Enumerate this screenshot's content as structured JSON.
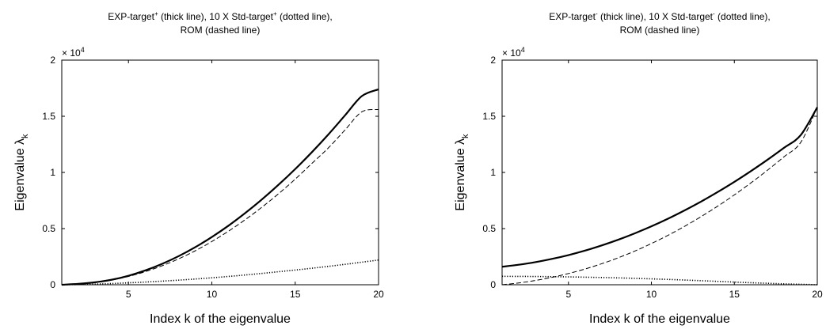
{
  "chart_data": [
    {
      "type": "line",
      "title_line1": [
        "EXP-target",
        "+",
        " (thick line), 10 X Std-target",
        "+",
        " (dotted line),"
      ],
      "title_line2": "ROM (dashed line)",
      "xlabel": "Index k of the eigenvalue",
      "ylabel_main": "Eigenvalue λ",
      "ylabel_sub": "k",
      "xlim": [
        1,
        20
      ],
      "ylim": [
        0,
        20000
      ],
      "xticks": [
        5,
        10,
        15,
        20
      ],
      "yticks": [
        0,
        0.5,
        1,
        1.5,
        2
      ],
      "yticklabels": [
        "0",
        "0.5",
        "1",
        "1.5",
        "2"
      ],
      "multiplier": {
        "base": "× 10",
        "exp": "4"
      },
      "x": [
        1,
        2,
        3,
        4,
        5,
        6,
        7,
        8,
        9,
        10,
        11,
        12,
        13,
        14,
        15,
        16,
        17,
        18,
        19,
        20
      ],
      "series": [
        {
          "style": "thick",
          "values": [
            0,
            80,
            220,
            450,
            800,
            1270,
            1850,
            2540,
            3340,
            4250,
            5260,
            6380,
            7590,
            8900,
            10300,
            11800,
            13400,
            15100,
            16800,
            17400
          ]
        },
        {
          "style": "dotted",
          "values": [
            0,
            20,
            60,
            110,
            170,
            240,
            320,
            410,
            510,
            620,
            740,
            870,
            1010,
            1160,
            1310,
            1470,
            1640,
            1820,
            2010,
            2200
          ]
        },
        {
          "style": "dashed",
          "values": [
            0,
            70,
            210,
            420,
            740,
            1160,
            1680,
            2300,
            3020,
            3850,
            4770,
            5790,
            6900,
            8100,
            9400,
            10800,
            12200,
            13800,
            15400,
            15600
          ]
        }
      ]
    },
    {
      "type": "line",
      "title_line1": [
        "EXP-target",
        "-",
        " (thick line), 10 X Std-target",
        "-",
        " (dotted line),"
      ],
      "title_line2": "ROM (dashed line)",
      "xlabel": "Index k of the eigenvalue",
      "ylabel_main": "Eigenvalue λ",
      "ylabel_sub": "k",
      "xlim": [
        1,
        20
      ],
      "ylim": [
        0,
        20000
      ],
      "xticks": [
        5,
        10,
        15,
        20
      ],
      "yticks": [
        0,
        0.5,
        1,
        1.5,
        2
      ],
      "yticklabels": [
        "0",
        "0.5",
        "1",
        "1.5",
        "2"
      ],
      "multiplier": {
        "base": "× 10",
        "exp": "4"
      },
      "x": [
        1,
        2,
        3,
        4,
        5,
        6,
        7,
        8,
        9,
        10,
        11,
        12,
        13,
        14,
        15,
        16,
        17,
        18,
        19,
        20
      ],
      "series": [
        {
          "style": "thick",
          "values": [
            1600,
            1780,
            2010,
            2300,
            2640,
            3040,
            3500,
            4010,
            4580,
            5200,
            5880,
            6620,
            7410,
            8260,
            9160,
            10120,
            11130,
            12200,
            13320,
            15800
          ]
        },
        {
          "style": "dotted",
          "values": [
            750,
            745,
            735,
            720,
            700,
            675,
            645,
            610,
            570,
            525,
            475,
            420,
            360,
            300,
            240,
            180,
            130,
            80,
            40,
            0
          ]
        },
        {
          "style": "dashed",
          "values": [
            0,
            160,
            380,
            660,
            1000,
            1400,
            1870,
            2400,
            3000,
            3670,
            4400,
            5200,
            6070,
            7000,
            8000,
            9070,
            10200,
            11400,
            12670,
            15800
          ]
        }
      ]
    }
  ]
}
